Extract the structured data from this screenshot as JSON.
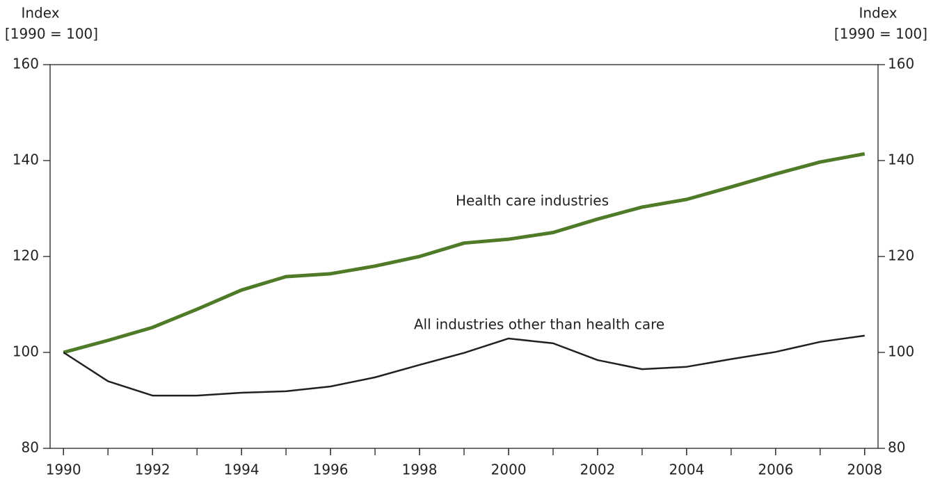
{
  "chart_data": {
    "type": "line",
    "ylabel": [
      "Index",
      "[1990 = 100]"
    ],
    "y2label": [
      "Index",
      "[1990 = 100]"
    ],
    "x": [
      1990,
      1991,
      1992,
      1993,
      1994,
      1995,
      1996,
      1997,
      1998,
      1999,
      2000,
      2001,
      2002,
      2003,
      2004,
      2005,
      2006,
      2007,
      2008
    ],
    "xlim": [
      1989.7,
      2008.3
    ],
    "xticks": [
      1990,
      1992,
      1994,
      1996,
      1998,
      2000,
      2002,
      2004,
      2006,
      2008
    ],
    "ylim": [
      80,
      160
    ],
    "yticks": [
      80,
      100,
      120,
      140,
      160
    ],
    "y2lim": [
      80,
      160
    ],
    "y2ticks": [
      80,
      100,
      120,
      140,
      160
    ],
    "series": [
      {
        "name": "Health care industries",
        "color": "#4f7a28",
        "values": [
          100,
          102.5,
          105.2,
          109,
          113,
          115.8,
          116.4,
          118,
          120,
          122.8,
          123.6,
          125,
          127.8,
          130.3,
          131.9,
          134.5,
          137.2,
          139.7,
          141.4
        ]
      },
      {
        "name": "All industries other than health care",
        "color": "#231f20",
        "values": [
          100,
          94,
          91,
          91,
          91.6,
          91.9,
          92.9,
          94.8,
          97.4,
          99.9,
          102.9,
          101.9,
          98.4,
          96.5,
          97,
          98.6,
          100.1,
          102.2,
          103.5
        ]
      }
    ]
  }
}
